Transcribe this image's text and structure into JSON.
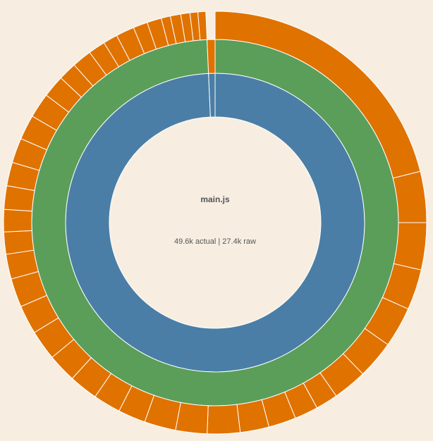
{
  "chart_data": {
    "type": "sunburst",
    "center_title": "main.js",
    "center_subtitle": "49.6k actual | 27.4k raw",
    "rings": [
      {
        "values": [
          99.3,
          0.7
        ],
        "colors": [
          "#4a7ea6",
          "#4a7ea6"
        ]
      },
      {
        "values": [
          99.3,
          0.7
        ],
        "colors": [
          "#5a9e5a",
          "#e07200"
        ]
      },
      {
        "values": [
          21.1,
          3.9,
          3.6,
          3.1,
          3.1,
          2.9,
          2.6,
          1.7,
          1.8,
          2.1,
          2.2,
          2.5,
          2.4,
          2.4,
          2.1,
          2.1,
          2.2,
          2.2,
          2.3,
          2.2,
          2.2,
          1.9,
          1.7,
          1.7,
          1.8,
          1.8,
          1.9,
          1.9,
          1.9,
          1.7,
          1.4,
          1.5,
          1.3,
          1.1,
          1.4,
          1.1,
          1.1,
          0.7,
          0.8,
          0.7,
          0.6,
          0.6
        ],
        "color": "#e07200"
      }
    ]
  }
}
